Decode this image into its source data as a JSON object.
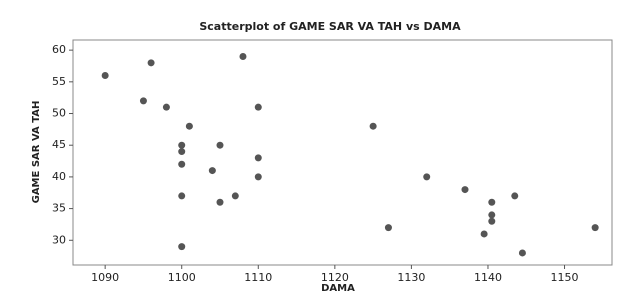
{
  "chart_data": {
    "type": "scatter",
    "title": "Scatterplot of GAME SAR VA TAH vs DAMA",
    "x_label": "DAMA",
    "y_label": "GAME SAR VA TAH",
    "color": "#555555",
    "x": [
      1090,
      1096,
      1095,
      1098,
      1108,
      1101,
      1110,
      1100,
      1100,
      1100,
      1100,
      1100,
      1105,
      1105,
      1104,
      1107,
      1110,
      1110,
      1125,
      1132,
      1127,
      1137,
      1139.5,
      1140.5,
      1140.5,
      1140.5,
      1143.5,
      1144.5,
      1154
    ],
    "y": [
      56,
      58,
      52,
      51,
      59,
      48,
      51,
      45,
      44,
      42,
      37,
      29,
      45,
      36,
      41,
      37,
      43,
      40,
      48,
      40,
      32,
      38,
      31,
      36,
      34,
      33,
      37,
      28,
      32
    ],
    "xlim": [
      1085.8,
      1156.2
    ],
    "ylim": [
      26.1,
      61.6
    ],
    "xticks": [
      1090,
      1100,
      1110,
      1120,
      1130,
      1140,
      1150
    ],
    "yticks": [
      30,
      35,
      40,
      45,
      50,
      55,
      60
    ]
  }
}
